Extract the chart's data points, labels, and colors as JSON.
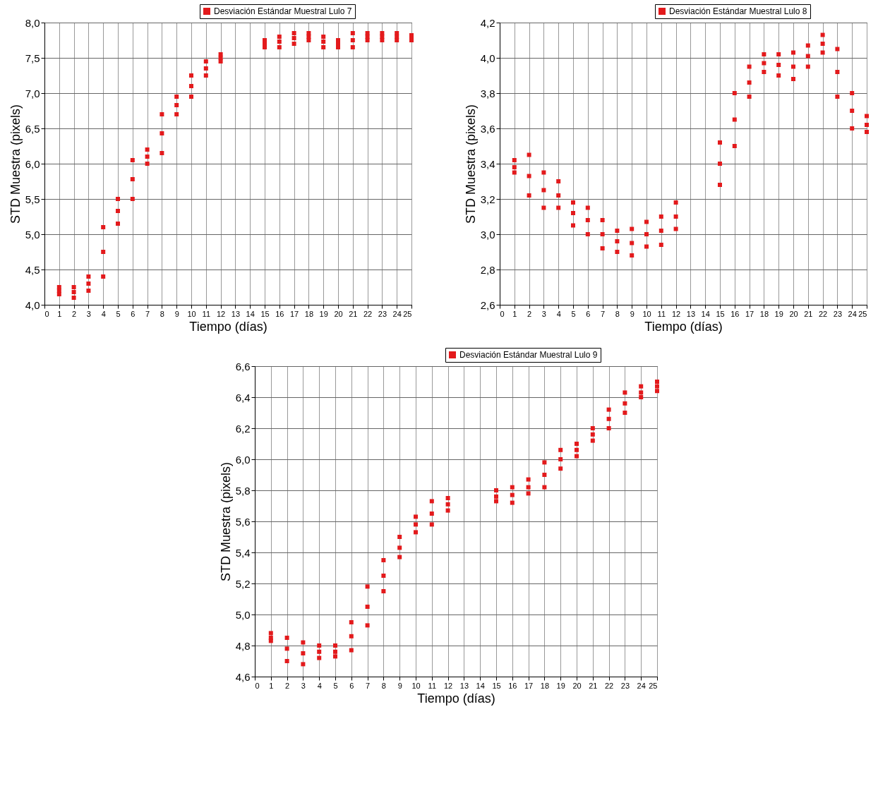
{
  "chart_data": [
    {
      "type": "scatter",
      "xlabel": "Tiempo (días)",
      "ylabel": "STD Muestra (pixels)",
      "xlim": [
        0,
        25
      ],
      "xticks": [
        0,
        1,
        2,
        3,
        4,
        5,
        6,
        7,
        8,
        9,
        10,
        11,
        12,
        13,
        14,
        15,
        16,
        17,
        18,
        19,
        20,
        21,
        22,
        23,
        24,
        25
      ],
      "marker": "square",
      "ylim": [
        4,
        8
      ],
      "yticks": [
        {
          "value": 4,
          "label": "4,0"
        },
        {
          "value": 4.5,
          "label": "4,5"
        },
        {
          "value": 5,
          "label": "5,0"
        },
        {
          "value": 5.5,
          "label": "5,5"
        },
        {
          "value": 6,
          "label": "6,0"
        },
        {
          "value": 6.5,
          "label": "6,5"
        },
        {
          "value": 7,
          "label": "7,0"
        },
        {
          "value": 7.5,
          "label": "7,5"
        },
        {
          "value": 8,
          "label": "8,0"
        }
      ],
      "grid": true,
      "legend": "top right",
      "series": [
        {
          "name": "Desviación Estándar Muestral Lulo 7",
          "color": "#e31a1c",
          "x": [
            1,
            1,
            1,
            2,
            2,
            2,
            3,
            3,
            3,
            4,
            4,
            4,
            5,
            5,
            5,
            6,
            6,
            6,
            7,
            7,
            7,
            8,
            8,
            8,
            9,
            9,
            9,
            10,
            10,
            10,
            11,
            11,
            11,
            12,
            12,
            12,
            15,
            15,
            15,
            16,
            16,
            16,
            17,
            17,
            17,
            18,
            18,
            18,
            19,
            19,
            19,
            20,
            20,
            20,
            21,
            21,
            21,
            22,
            22,
            22,
            23,
            23,
            23,
            24,
            24,
            24,
            25,
            25,
            25
          ],
          "values": [
            4.15,
            4.2,
            4.25,
            4.1,
            4.18,
            4.25,
            4.2,
            4.3,
            4.4,
            4.4,
            4.75,
            5.1,
            5.15,
            5.33,
            5.5,
            5.5,
            5.78,
            6.05,
            6,
            6.1,
            6.2,
            6.15,
            6.43,
            6.7,
            6.7,
            6.83,
            6.95,
            6.95,
            7.1,
            7.25,
            7.25,
            7.35,
            7.45,
            7.45,
            7.5,
            7.55,
            7.65,
            7.7,
            7.75,
            7.65,
            7.73,
            7.8,
            7.7,
            7.78,
            7.85,
            7.75,
            7.8,
            7.85,
            7.65,
            7.73,
            7.8,
            7.65,
            7.7,
            7.75,
            7.65,
            7.75,
            7.85,
            7.75,
            7.8,
            7.85,
            7.75,
            7.8,
            7.85,
            7.75,
            7.8,
            7.85,
            7.75,
            7.78,
            7.82
          ]
        }
      ]
    },
    {
      "type": "scatter",
      "xlabel": "Tiempo (días)",
      "ylabel": "STD Muestra (pixels)",
      "xlim": [
        0,
        25
      ],
      "xticks": [
        0,
        1,
        2,
        3,
        4,
        5,
        6,
        7,
        8,
        9,
        10,
        11,
        12,
        13,
        14,
        15,
        16,
        17,
        18,
        19,
        20,
        21,
        22,
        23,
        24,
        25
      ],
      "marker": "square",
      "ylim": [
        2.6,
        4.2
      ],
      "yticks": [
        {
          "value": 2.6,
          "label": "2,6"
        },
        {
          "value": 2.8,
          "label": "2,8"
        },
        {
          "value": 3,
          "label": "3,0"
        },
        {
          "value": 3.2,
          "label": "3,2"
        },
        {
          "value": 3.4,
          "label": "3,4"
        },
        {
          "value": 3.6,
          "label": "3,6"
        },
        {
          "value": 3.8,
          "label": "3,8"
        },
        {
          "value": 4,
          "label": "4,0"
        },
        {
          "value": 4.2,
          "label": "4,2"
        }
      ],
      "grid": true,
      "legend": "top right",
      "series": [
        {
          "name": "Desviación Estándar Muestral Lulo 8",
          "color": "#e31a1c",
          "x": [
            1,
            1,
            1,
            2,
            2,
            2,
            3,
            3,
            3,
            4,
            4,
            4,
            5,
            5,
            5,
            6,
            6,
            6,
            7,
            7,
            7,
            8,
            8,
            8,
            9,
            9,
            9,
            10,
            10,
            10,
            11,
            11,
            11,
            12,
            12,
            12,
            15,
            15,
            15,
            16,
            16,
            16,
            17,
            17,
            17,
            18,
            18,
            18,
            19,
            19,
            19,
            20,
            20,
            20,
            21,
            21,
            21,
            22,
            22,
            22,
            23,
            23,
            23,
            24,
            24,
            24,
            25,
            25,
            25
          ],
          "values": [
            3.35,
            3.38,
            3.42,
            3.22,
            3.33,
            3.45,
            3.15,
            3.25,
            3.35,
            3.15,
            3.22,
            3.3,
            3.05,
            3.12,
            3.18,
            3,
            3.08,
            3.15,
            2.92,
            3,
            3.08,
            2.9,
            2.96,
            3.02,
            2.88,
            2.95,
            3.03,
            2.93,
            3,
            3.07,
            2.94,
            3.02,
            3.1,
            3.03,
            3.1,
            3.18,
            3.28,
            3.4,
            3.52,
            3.5,
            3.65,
            3.8,
            3.78,
            3.86,
            3.95,
            3.92,
            3.97,
            4.02,
            3.9,
            3.96,
            4.02,
            3.88,
            3.95,
            4.03,
            3.95,
            4.01,
            4.07,
            4.03,
            4.08,
            4.13,
            3.78,
            3.92,
            4.05,
            3.6,
            3.7,
            3.8,
            3.58,
            3.62,
            3.67
          ]
        }
      ]
    },
    {
      "type": "scatter",
      "xlabel": "Tiempo (días)",
      "ylabel": "STD Muestra (pixels)",
      "xlim": [
        0,
        25
      ],
      "xticks": [
        0,
        1,
        2,
        3,
        4,
        5,
        6,
        7,
        8,
        9,
        10,
        11,
        12,
        13,
        14,
        15,
        16,
        17,
        18,
        19,
        20,
        21,
        22,
        23,
        24,
        25
      ],
      "marker": "square",
      "ylim": [
        4.6,
        6.6
      ],
      "yticks": [
        {
          "value": 4.6,
          "label": "4,6"
        },
        {
          "value": 4.8,
          "label": "4,8"
        },
        {
          "value": 5,
          "label": "5,0"
        },
        {
          "value": 5.2,
          "label": "5,2"
        },
        {
          "value": 5.4,
          "label": "5,4"
        },
        {
          "value": 5.6,
          "label": "5,6"
        },
        {
          "value": 5.8,
          "label": "5,8"
        },
        {
          "value": 6,
          "label": "6,0"
        },
        {
          "value": 6.2,
          "label": "6,2"
        },
        {
          "value": 6.4,
          "label": "6,4"
        },
        {
          "value": 6.6,
          "label": "6,6"
        }
      ],
      "grid": true,
      "legend": "top right",
      "series": [
        {
          "name": "Desviación Estándar Muestral Lulo 9",
          "color": "#e31a1c",
          "x": [
            1,
            1,
            1,
            2,
            2,
            2,
            3,
            3,
            3,
            4,
            4,
            4,
            5,
            5,
            5,
            6,
            6,
            6,
            7,
            7,
            7,
            8,
            8,
            8,
            9,
            9,
            9,
            10,
            10,
            10,
            11,
            11,
            11,
            12,
            12,
            12,
            15,
            15,
            15,
            16,
            16,
            16,
            17,
            17,
            17,
            18,
            18,
            18,
            19,
            19,
            19,
            20,
            20,
            20,
            21,
            21,
            21,
            22,
            22,
            22,
            23,
            23,
            23,
            24,
            24,
            24,
            25,
            25,
            25
          ],
          "values": [
            4.83,
            4.85,
            4.88,
            4.7,
            4.78,
            4.85,
            4.68,
            4.75,
            4.82,
            4.72,
            4.76,
            4.8,
            4.73,
            4.76,
            4.8,
            4.77,
            4.86,
            4.95,
            4.93,
            5.05,
            5.18,
            5.15,
            5.25,
            5.35,
            5.37,
            5.43,
            5.5,
            5.53,
            5.58,
            5.63,
            5.58,
            5.65,
            5.73,
            5.67,
            5.71,
            5.75,
            5.73,
            5.76,
            5.8,
            5.72,
            5.77,
            5.82,
            5.78,
            5.82,
            5.87,
            5.82,
            5.9,
            5.98,
            5.94,
            6,
            6.06,
            6.02,
            6.06,
            6.1,
            6.12,
            6.16,
            6.2,
            6.2,
            6.26,
            6.32,
            6.3,
            6.36,
            6.43,
            6.4,
            6.43,
            6.47,
            6.44,
            6.47,
            6.5
          ]
        }
      ]
    }
  ]
}
